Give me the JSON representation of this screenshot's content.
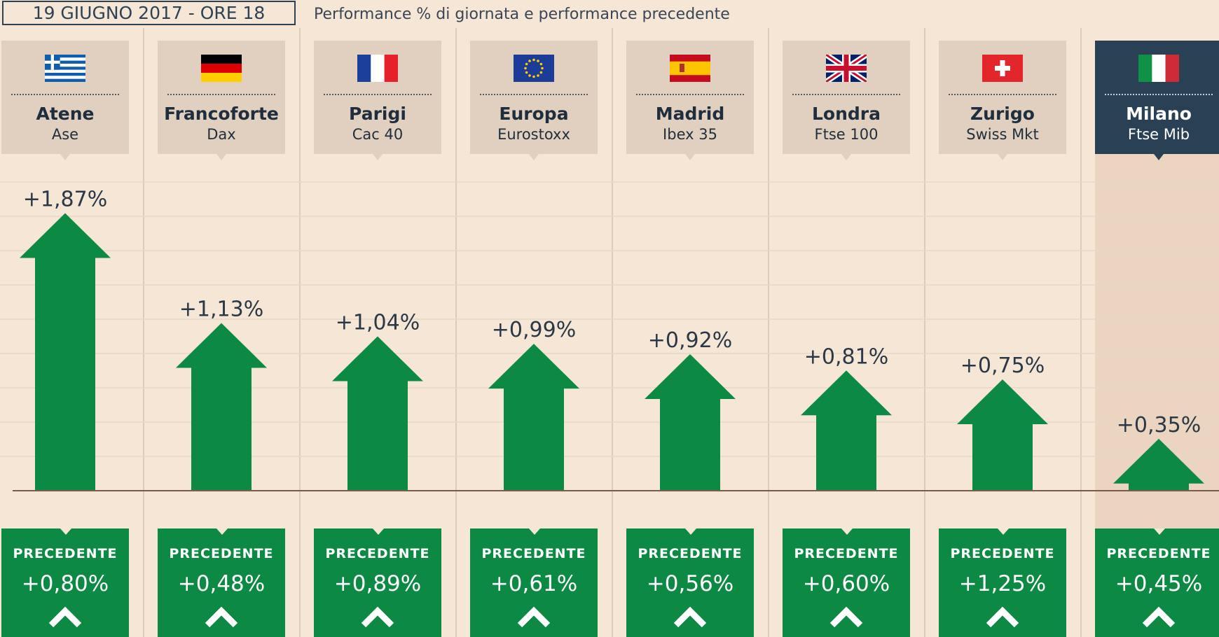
{
  "header": {
    "date": "19 GIUGNO 2017 - ORE 18",
    "subtitle": "Performance % di giornata e performance precedente"
  },
  "colors": {
    "up": "#0c8a43",
    "highlight": "#2a4055",
    "background": "#f5e6d6",
    "card": "#e1d0bf"
  },
  "markets": [
    {
      "city": "Atene",
      "index": "Ase",
      "flag": "greece-flag",
      "day_label": "+1,87%",
      "prev_heading": "PRECEDENTE",
      "prev_label": "+0,80%",
      "highlight": false
    },
    {
      "city": "Francoforte",
      "index": "Dax",
      "flag": "germany-flag",
      "day_label": "+1,13%",
      "prev_heading": "PRECEDENTE",
      "prev_label": "+0,48%",
      "highlight": false
    },
    {
      "city": "Parigi",
      "index": "Cac 40",
      "flag": "france-flag",
      "day_label": "+1,04%",
      "prev_heading": "PRECEDENTE",
      "prev_label": "+0,89%",
      "highlight": false
    },
    {
      "city": "Europa",
      "index": "Eurostoxx",
      "flag": "eu-flag",
      "day_label": "+0,99%",
      "prev_heading": "PRECEDENTE",
      "prev_label": "+0,61%",
      "highlight": false
    },
    {
      "city": "Madrid",
      "index": "Ibex 35",
      "flag": "spain-flag",
      "day_label": "+0,92%",
      "prev_heading": "PRECEDENTE",
      "prev_label": "+0,56%",
      "highlight": false
    },
    {
      "city": "Londra",
      "index": "Ftse 100",
      "flag": "uk-flag",
      "day_label": "+0,81%",
      "prev_heading": "PRECEDENTE",
      "prev_label": "+0,60%",
      "highlight": false
    },
    {
      "city": "Zurigo",
      "index": "Swiss Mkt",
      "flag": "switzerland-flag",
      "day_label": "+0,75%",
      "prev_heading": "PRECEDENTE",
      "prev_label": "+1,25%",
      "highlight": false
    },
    {
      "city": "Milano",
      "index": "Ftse Mib",
      "flag": "italy-flag",
      "day_label": "+0,35%",
      "prev_heading": "PRECEDENTE",
      "prev_label": "+0,45%",
      "highlight": true
    }
  ],
  "chart_data": {
    "type": "bar",
    "title": "Performance % di giornata e performance precedente",
    "categories": [
      "Atene Ase",
      "Francoforte Dax",
      "Parigi Cac 40",
      "Europa Eurostoxx",
      "Madrid Ibex 35",
      "Londra Ftse 100",
      "Zurigo Swiss Mkt",
      "Milano Ftse Mib"
    ],
    "series": [
      {
        "name": "Performance % di giornata",
        "values": [
          1.87,
          1.13,
          1.04,
          0.99,
          0.92,
          0.81,
          0.75,
          0.35
        ]
      },
      {
        "name": "PRECEDENTE",
        "values": [
          0.8,
          0.48,
          0.89,
          0.61,
          0.56,
          0.6,
          1.25,
          0.45
        ]
      }
    ],
    "grid": true
  }
}
